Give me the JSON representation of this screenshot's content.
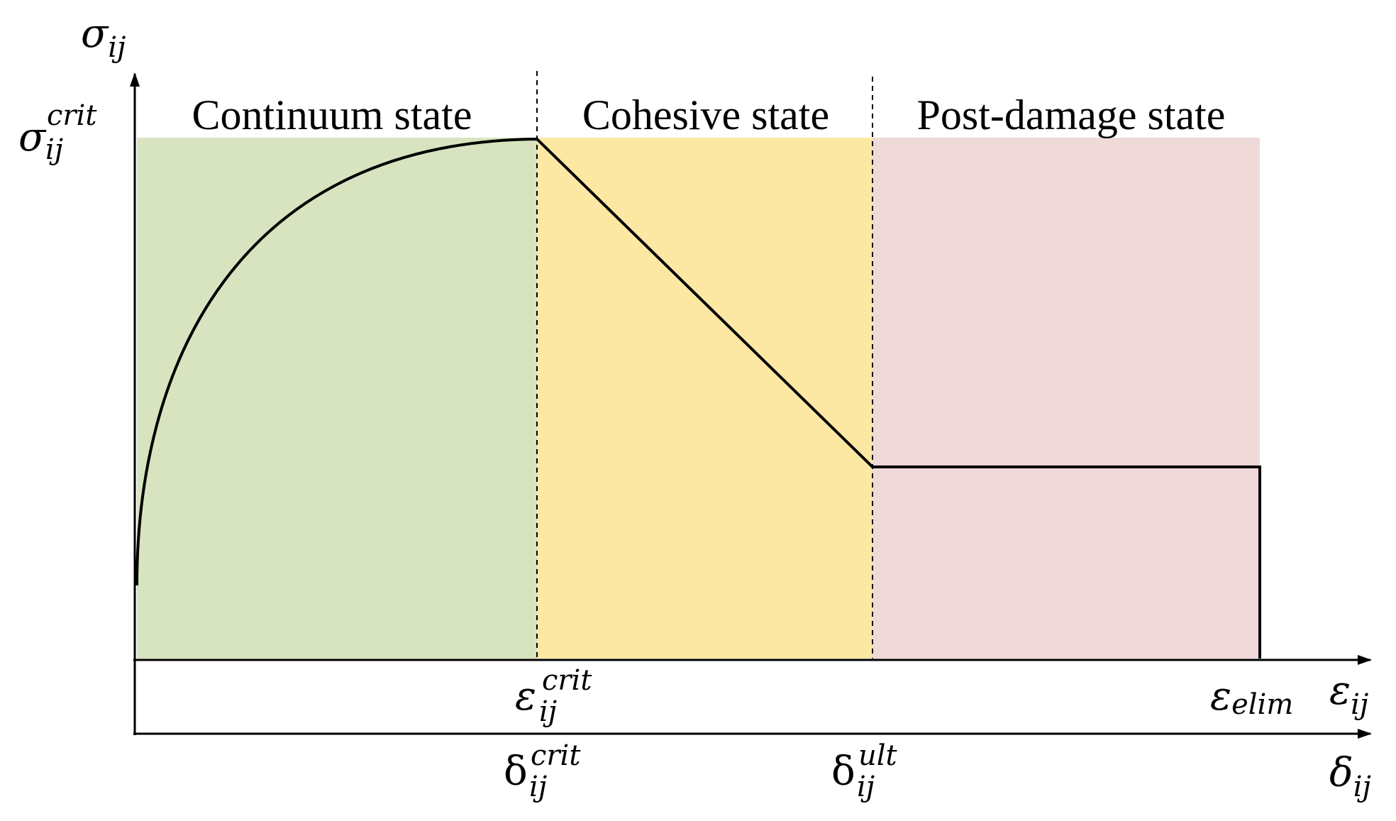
{
  "colors": {
    "continuum": "#d8e4bf",
    "cohesive": "#fde8a3",
    "post_damage": "#f0d9d9",
    "curve": "#000000",
    "axis": "#000000"
  },
  "regions": {
    "continuum": "Continuum state",
    "cohesive": "Cohesive state",
    "post_damage": "Post-damage state"
  },
  "labels": {
    "sigma_axis": {
      "base": "σ",
      "sub": "ij"
    },
    "sigma_crit": {
      "base": "σ",
      "sub": "ij",
      "sup": "crit"
    },
    "eps_crit": {
      "base": "ε",
      "sub": "ij",
      "sup": "crit"
    },
    "eps_elim": {
      "base": "ε",
      "sub": "elim"
    },
    "eps_axis": {
      "base": "ε",
      "sub": "ij"
    },
    "delta_crit": {
      "base": "δ",
      "sub": "ij",
      "sup": "crit"
    },
    "delta_ult": {
      "base": "δ",
      "sub": "ij",
      "sup": "ult"
    },
    "delta_axis": {
      "base": "δ",
      "sub": "ij"
    }
  }
}
